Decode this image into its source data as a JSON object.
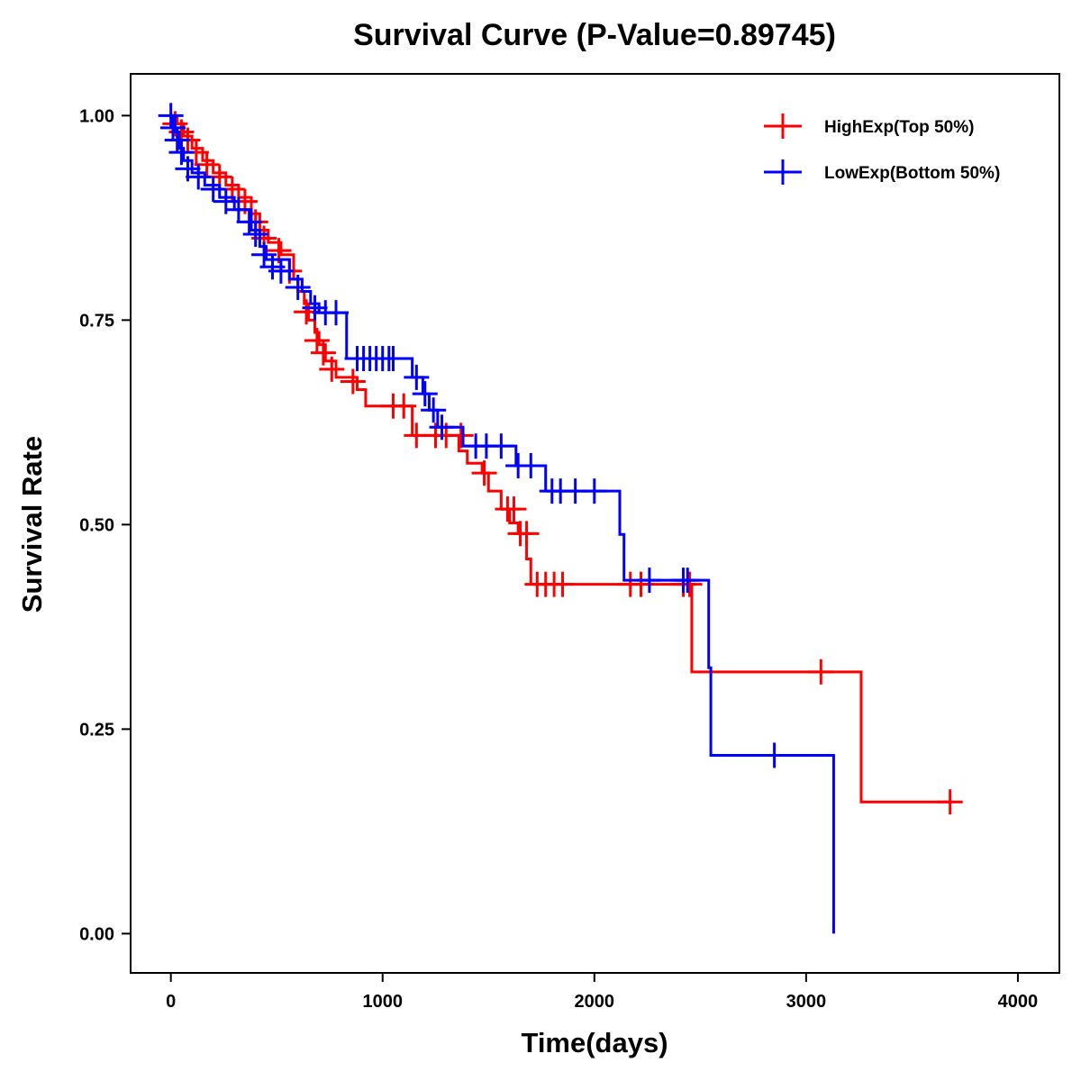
{
  "chart_data": {
    "type": "line",
    "subtype": "kaplan-meier step",
    "title": "Survival Curve (P-Value=0.89745)",
    "xlabel": "Time(days)",
    "ylabel": "Survival Rate",
    "xlim": [
      -190,
      4196
    ],
    "ylim": [
      -0.048,
      1.051
    ],
    "xticks": [
      "0",
      "1000",
      "2000",
      "3000",
      "4000"
    ],
    "xtick_values": [
      0,
      1000,
      2000,
      3000,
      4000
    ],
    "yticks": [
      "0.00",
      "0.25",
      "0.50",
      "0.75",
      "1.00"
    ],
    "ytick_values": [
      0,
      0.25,
      0.5,
      0.75,
      1.0
    ],
    "grid": false,
    "legend_position": "top-right",
    "series": [
      {
        "name": "HighExp(Top 50%)",
        "color": "#ff0000",
        "steps": [
          [
            0,
            1.0
          ],
          [
            30,
            0.99
          ],
          [
            60,
            0.975
          ],
          [
            100,
            0.96
          ],
          [
            150,
            0.945
          ],
          [
            200,
            0.93
          ],
          [
            260,
            0.915
          ],
          [
            320,
            0.9
          ],
          [
            380,
            0.88
          ],
          [
            420,
            0.86
          ],
          [
            460,
            0.845
          ],
          [
            520,
            0.83
          ],
          [
            580,
            0.8
          ],
          [
            600,
            0.785
          ],
          [
            630,
            0.77
          ],
          [
            650,
            0.75
          ],
          [
            680,
            0.735
          ],
          [
            700,
            0.72
          ],
          [
            730,
            0.7
          ],
          [
            780,
            0.68
          ],
          [
            880,
            0.665
          ],
          [
            920,
            0.645
          ],
          [
            1140,
            0.609
          ],
          [
            1360,
            0.59
          ],
          [
            1400,
            0.575
          ],
          [
            1470,
            0.563
          ],
          [
            1500,
            0.541
          ],
          [
            1560,
            0.519
          ],
          [
            1600,
            0.502
          ],
          [
            1640,
            0.489
          ],
          [
            1680,
            0.458
          ],
          [
            1700,
            0.427
          ],
          [
            2460,
            0.32
          ],
          [
            3260,
            0.161
          ]
        ],
        "end": 3680,
        "censored": [
          [
            20,
            0.99
          ],
          [
            50,
            0.98
          ],
          [
            80,
            0.97
          ],
          [
            120,
            0.955
          ],
          [
            170,
            0.94
          ],
          [
            230,
            0.925
          ],
          [
            290,
            0.91
          ],
          [
            350,
            0.895
          ],
          [
            400,
            0.87
          ],
          [
            440,
            0.85
          ],
          [
            510,
            0.835
          ],
          [
            560,
            0.81
          ],
          [
            640,
            0.76
          ],
          [
            690,
            0.725
          ],
          [
            720,
            0.71
          ],
          [
            760,
            0.69
          ],
          [
            860,
            0.675
          ],
          [
            1050,
            0.645
          ],
          [
            1100,
            0.645
          ],
          [
            1160,
            0.609
          ],
          [
            1250,
            0.609
          ],
          [
            1300,
            0.609
          ],
          [
            1370,
            0.609
          ],
          [
            1480,
            0.563
          ],
          [
            1590,
            0.519
          ],
          [
            1620,
            0.519
          ],
          [
            1650,
            0.489
          ],
          [
            1680,
            0.489
          ],
          [
            1730,
            0.427
          ],
          [
            1770,
            0.427
          ],
          [
            1810,
            0.427
          ],
          [
            1850,
            0.427
          ],
          [
            2170,
            0.427
          ],
          [
            2220,
            0.427
          ],
          [
            2420,
            0.427
          ],
          [
            2450,
            0.427
          ],
          [
            3070,
            0.32
          ],
          [
            3680,
            0.161
          ]
        ]
      },
      {
        "name": "LowExp(Bottom 50%)",
        "color": "#0000ff",
        "steps": [
          [
            0,
            1.0
          ],
          [
            20,
            0.98
          ],
          [
            40,
            0.96
          ],
          [
            60,
            0.945
          ],
          [
            100,
            0.93
          ],
          [
            160,
            0.915
          ],
          [
            230,
            0.9
          ],
          [
            300,
            0.885
          ],
          [
            380,
            0.86
          ],
          [
            420,
            0.84
          ],
          [
            450,
            0.824
          ],
          [
            560,
            0.8
          ],
          [
            620,
            0.785
          ],
          [
            660,
            0.77
          ],
          [
            700,
            0.759
          ],
          [
            830,
            0.703
          ],
          [
            1140,
            0.68
          ],
          [
            1190,
            0.66
          ],
          [
            1220,
            0.64
          ],
          [
            1260,
            0.619
          ],
          [
            1380,
            0.596
          ],
          [
            1630,
            0.572
          ],
          [
            1770,
            0.541
          ],
          [
            2120,
            0.488
          ],
          [
            2140,
            0.432
          ],
          [
            2540,
            0.325
          ],
          [
            2550,
            0.218
          ],
          [
            3130,
            0.0
          ]
        ],
        "end": 3130,
        "censored": [
          [
            0,
            1.0
          ],
          [
            10,
            0.985
          ],
          [
            30,
            0.97
          ],
          [
            50,
            0.955
          ],
          [
            80,
            0.935
          ],
          [
            130,
            0.925
          ],
          [
            200,
            0.91
          ],
          [
            260,
            0.895
          ],
          [
            320,
            0.885
          ],
          [
            370,
            0.87
          ],
          [
            400,
            0.855
          ],
          [
            440,
            0.83
          ],
          [
            480,
            0.815
          ],
          [
            520,
            0.81
          ],
          [
            600,
            0.79
          ],
          [
            680,
            0.765
          ],
          [
            730,
            0.759
          ],
          [
            780,
            0.759
          ],
          [
            880,
            0.703
          ],
          [
            910,
            0.703
          ],
          [
            940,
            0.703
          ],
          [
            970,
            0.703
          ],
          [
            1000,
            0.703
          ],
          [
            1030,
            0.703
          ],
          [
            1050,
            0.703
          ],
          [
            1160,
            0.68
          ],
          [
            1200,
            0.66
          ],
          [
            1240,
            0.64
          ],
          [
            1280,
            0.619
          ],
          [
            1440,
            0.596
          ],
          [
            1490,
            0.596
          ],
          [
            1560,
            0.596
          ],
          [
            1640,
            0.572
          ],
          [
            1700,
            0.572
          ],
          [
            1800,
            0.541
          ],
          [
            1840,
            0.541
          ],
          [
            1910,
            0.541
          ],
          [
            2000,
            0.541
          ],
          [
            2260,
            0.432
          ],
          [
            2420,
            0.432
          ],
          [
            2440,
            0.432
          ],
          [
            2850,
            0.218
          ]
        ]
      }
    ]
  }
}
